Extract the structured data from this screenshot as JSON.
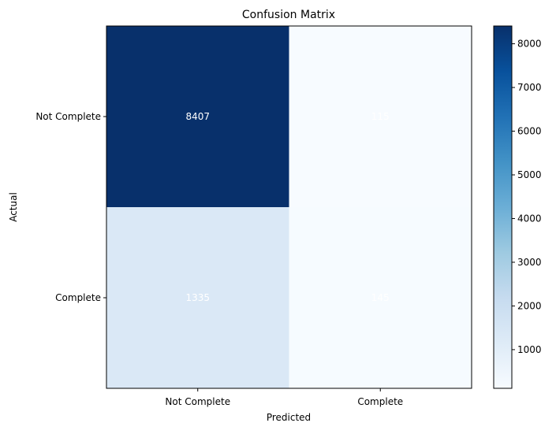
{
  "chart_data": {
    "type": "heatmap",
    "title": "Confusion Matrix",
    "xlabel": "Predicted",
    "ylabel": "Actual",
    "x_categories": [
      "Not Complete",
      "Complete"
    ],
    "y_categories": [
      "Not Complete",
      "Complete"
    ],
    "values": [
      [
        8407,
        115
      ],
      [
        1335,
        145
      ]
    ],
    "colormap": "Blues",
    "colorbar": {
      "vmin": 115,
      "vmax": 8407,
      "ticks": [
        1000,
        2000,
        3000,
        4000,
        5000,
        6000,
        7000,
        8000
      ]
    },
    "cell_label_color": "#ffffff"
  }
}
